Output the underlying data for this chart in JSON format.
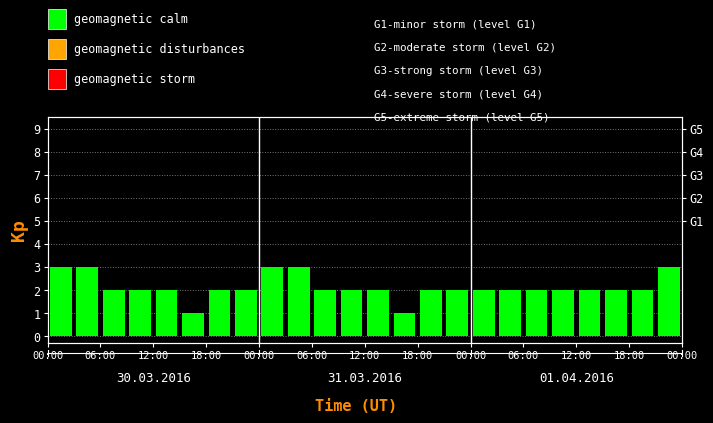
{
  "background_color": "#000000",
  "bar_color": "#00ff00",
  "tick_color": "#ffffff",
  "axis_label_color": "#ff8c00",
  "right_label_color": "#ffffff",
  "legend_text_color": "#ffffff",
  "day1_values": [
    3,
    3,
    2,
    2,
    2,
    1,
    2,
    2
  ],
  "day2_values": [
    3,
    3,
    2,
    2,
    2,
    1,
    2,
    2
  ],
  "day3_values": [
    2,
    2,
    2,
    2,
    2,
    2,
    2,
    3
  ],
  "ylim_min": -0.3,
  "ylim_max": 9.5,
  "yticks": [
    0,
    1,
    2,
    3,
    4,
    5,
    6,
    7,
    8,
    9
  ],
  "right_yticks": [
    5,
    6,
    7,
    8,
    9
  ],
  "right_ylabels": [
    "G1",
    "G2",
    "G3",
    "G4",
    "G5"
  ],
  "xlabel": "Time (UT)",
  "ylabel": "Kp",
  "date_labels": [
    "30.03.2016",
    "31.03.2016",
    "01.04.2016"
  ],
  "legend_items": [
    {
      "label": "geomagnetic calm",
      "color": "#00ff00"
    },
    {
      "label": "geomagnetic disturbances",
      "color": "#ffa500"
    },
    {
      "label": "geomagnetic storm",
      "color": "#ff0000"
    }
  ],
  "right_legend_lines": [
    "G1-minor storm (level G1)",
    "G2-moderate storm (level G2)",
    "G3-strong storm (level G3)",
    "G4-severe storm (level G4)",
    "G5-extreme storm (level G5)"
  ],
  "num_days": 3,
  "bars_per_day": 8,
  "xtick_labels": [
    "00:00",
    "06:00",
    "12:00",
    "18:00",
    "00:00",
    "06:00",
    "12:00",
    "18:00",
    "00:00",
    "06:00",
    "12:00",
    "18:00",
    "00:00"
  ]
}
